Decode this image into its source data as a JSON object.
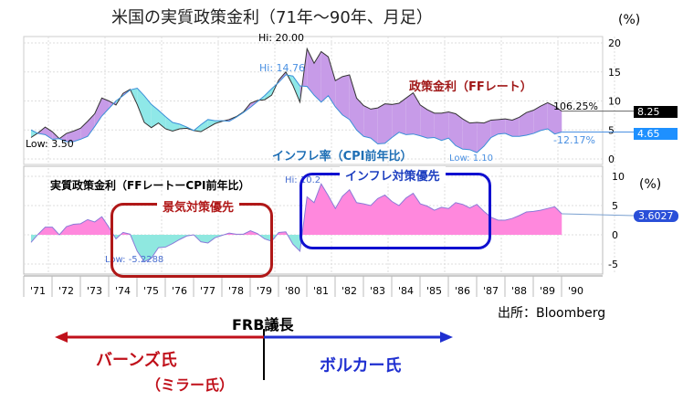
{
  "chart_data": [
    {
      "type": "area",
      "title": "米国の実質政策金利（71年〜90年、月足）",
      "unit": "(%)",
      "x_start": 1971,
      "x_step": 0.25,
      "ylim": [
        0,
        22
      ],
      "yticks": [
        0,
        5,
        10,
        15,
        20
      ],
      "series": [
        {
          "name": "政策金利（FFレート）",
          "color": "#333333",
          "values": [
            3.7,
            4.5,
            5.5,
            4.7,
            3.5,
            4.4,
            4.8,
            5.3,
            6.5,
            7.8,
            10.5,
            10.0,
            9.3,
            11.3,
            12.0,
            9.4,
            6.3,
            5.4,
            6.2,
            5.2,
            4.8,
            5.2,
            5.3,
            4.9,
            4.7,
            5.4,
            6.1,
            6.5,
            6.8,
            7.3,
            8.1,
            9.6,
            10.1,
            10.2,
            11.0,
            13.6,
            15.0,
            12.7,
            9.8,
            19.0,
            16.5,
            18.5,
            17.6,
            13.5,
            14.2,
            14.5,
            10.5,
            9.2,
            8.6,
            8.8,
            9.5,
            9.4,
            9.6,
            10.5,
            11.4,
            9.3,
            8.5,
            7.9,
            7.9,
            8.1,
            7.8,
            6.9,
            6.2,
            6.3,
            6.2,
            6.7,
            6.8,
            6.9,
            6.7,
            7.2,
            8.0,
            8.4,
            9.1,
            9.7,
            9.1,
            8.25
          ]
        },
        {
          "name": "インフレ率（CPI前年比）",
          "color": "#3a8fd8",
          "values": [
            5.0,
            4.4,
            4.2,
            3.4,
            3.5,
            3.0,
            3.0,
            3.4,
            3.9,
            5.6,
            7.4,
            8.7,
            10.0,
            10.9,
            11.9,
            12.2,
            10.9,
            9.4,
            8.4,
            7.3,
            6.3,
            6.0,
            5.5,
            4.9,
            5.9,
            6.8,
            6.6,
            6.6,
            6.5,
            7.2,
            8.0,
            8.9,
            9.9,
            10.9,
            12.1,
            13.2,
            14.5,
            14.3,
            12.6,
            12.5,
            11.0,
            9.8,
            10.9,
            9.0,
            7.6,
            6.8,
            5.0,
            3.9,
            3.6,
            2.6,
            2.7,
            3.7,
            4.6,
            4.2,
            4.3,
            4.0,
            3.6,
            3.7,
            3.2,
            3.6,
            2.3,
            1.7,
            1.6,
            1.1,
            2.2,
            3.7,
            4.3,
            4.4,
            3.9,
            3.9,
            4.1,
            4.4,
            4.9,
            5.2,
            4.3,
            4.65
          ]
        }
      ],
      "annotations": {
        "ff_hi": "Hi: 20.00",
        "ff_low": "Low: 3.50",
        "cpi_hi": "Hi: 14.76",
        "cpi_low": "Low: 1.10",
        "ff_last": "8.25",
        "cpi_last": "4.65",
        "ff_pct": "106.25%",
        "cpi_pct": "-12.17%",
        "ff_label": "政策金利（FFレート）",
        "cpi_label": "インフレ率（CPI前年比）"
      },
      "colors": {
        "positive": "#c79be8",
        "negative": "#8fe8e8"
      }
    },
    {
      "type": "area",
      "title": "実質政策金利（FFレートーCPI前年比）",
      "unit": "(%)",
      "ylim": [
        -7,
        11
      ],
      "yticks": [
        -5,
        0,
        5,
        10
      ],
      "series": [
        {
          "name": "実質政策金利",
          "derived": "FF - CPI"
        }
      ],
      "annotations": {
        "hi": "Hi: 10.2",
        "low": "Low: -5.2288",
        "last": "3.6027"
      },
      "colors": {
        "positive": "#ff88dd",
        "negative": "#8fe8e0"
      }
    }
  ],
  "xticks": [
    "'71",
    "'72",
    "'73",
    "'74",
    "'75",
    "'76",
    "'77",
    "'78",
    "'79",
    "'80",
    "'81",
    "'82",
    "'83",
    "'84",
    "'85",
    "'86",
    "'87",
    "'88",
    "'89",
    "'90"
  ],
  "callouts": {
    "easing": "景気対策優先",
    "tightening": "インフレ対策優先"
  },
  "source": "出所：Bloomberg",
  "frb": {
    "label": "FRB議長",
    "burns": "バーンズ氏",
    "miller": "（ミラー氏）",
    "volcker": "ボルカー氏"
  }
}
